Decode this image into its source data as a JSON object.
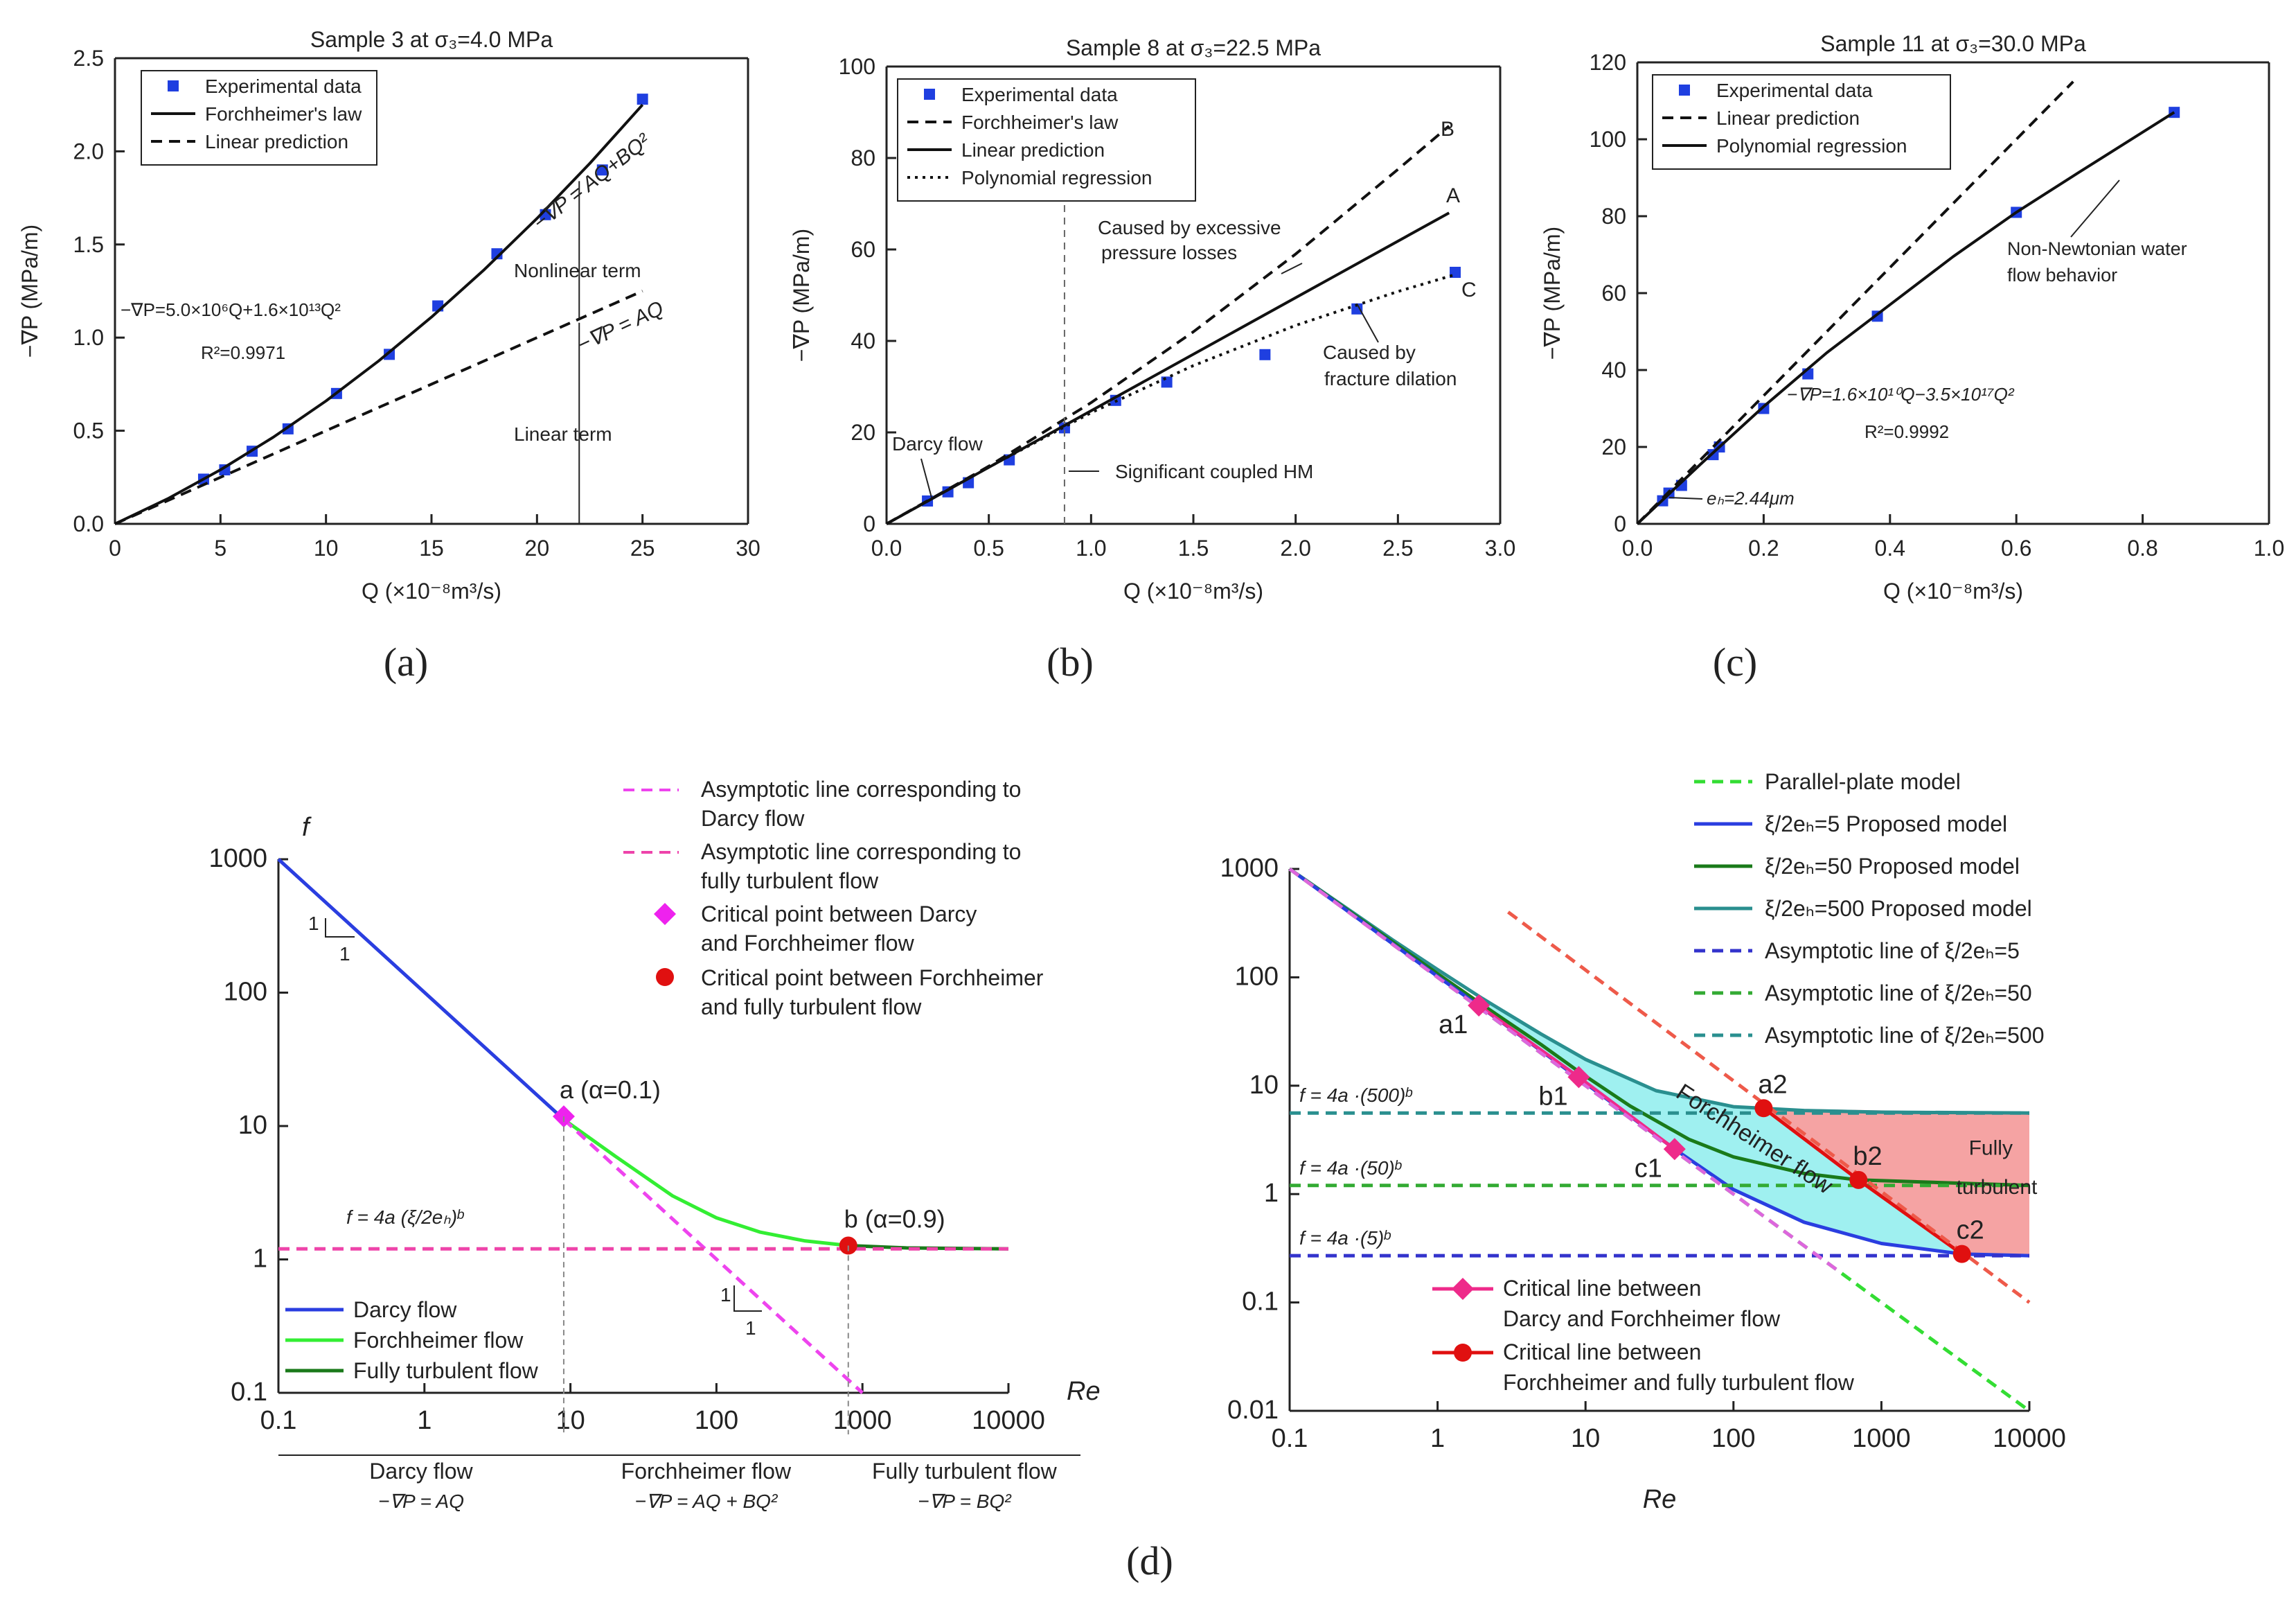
{
  "chart_data": [
    {
      "id": "a",
      "type": "scatter",
      "panel_label": "(a)",
      "title": "Sample 3 at σ₃=4.0 MPa",
      "xlabel": "Q (×10⁻⁸m³/s)",
      "ylabel": "−∇P (MPa/m)",
      "xlim": [
        0,
        30
      ],
      "ylim": [
        0,
        2.5
      ],
      "xticks": [
        0,
        5,
        10,
        15,
        20,
        25,
        30
      ],
      "yticks": [
        0.0,
        0.5,
        1.0,
        1.5,
        2.0,
        2.5
      ],
      "xtick_labels": [
        "0",
        "5",
        "10",
        "15",
        "20",
        "25",
        "30"
      ],
      "ytick_labels": [
        "0.0",
        "0.5",
        "1.0",
        "1.5",
        "2.0",
        "2.5"
      ],
      "legend": [
        "Experimental data",
        "Forchheimer's law",
        "Linear prediction"
      ],
      "series": [
        {
          "name": "Experimental data",
          "style": "marker",
          "color": "#1f3fe0",
          "x": [
            4.2,
            5.2,
            6.5,
            8.2,
            10.5,
            13.0,
            15.3,
            18.1,
            20.4,
            23.1,
            25.0
          ],
          "y": [
            0.24,
            0.29,
            0.39,
            0.51,
            0.7,
            0.91,
            1.17,
            1.45,
            1.66,
            1.9,
            2.28
          ]
        },
        {
          "name": "Forchheimer's law",
          "style": "solid",
          "color": "#111111",
          "x": [
            0,
            2.5,
            5,
            7.5,
            10,
            12.5,
            15,
            17.5,
            20,
            22.5,
            25
          ],
          "y": [
            0,
            0.135,
            0.29,
            0.465,
            0.66,
            0.875,
            1.11,
            1.365,
            1.64,
            1.935,
            2.25
          ]
        },
        {
          "name": "Linear prediction",
          "style": "dashed",
          "color": "#111111",
          "x": [
            0,
            25
          ],
          "y": [
            0,
            1.25
          ]
        }
      ],
      "annotations": [
        "−∇P = AQ+BQ²",
        "−∇P = AQ",
        "Nonlinear term",
        "Linear term",
        "−∇P=5.0×10⁶Q+1.6×10¹³Q²",
        "R²=0.9971"
      ]
    },
    {
      "id": "b",
      "type": "scatter",
      "panel_label": "(b)",
      "title": "Sample 8 at σ₃=22.5 MPa",
      "xlabel": "Q (×10⁻⁸m³/s)",
      "ylabel": "−∇P (MPa/m)",
      "xlim": [
        0,
        3.0
      ],
      "ylim": [
        0,
        100
      ],
      "xticks": [
        0,
        0.5,
        1.0,
        1.5,
        2.0,
        2.5,
        3.0
      ],
      "yticks": [
        0,
        20,
        40,
        60,
        80,
        100
      ],
      "xtick_labels": [
        "0.0",
        "0.5",
        "1.0",
        "1.5",
        "2.0",
        "2.5",
        "3.0"
      ],
      "ytick_labels": [
        "0",
        "20",
        "40",
        "60",
        "80",
        "100"
      ],
      "legend": [
        "Experimental data",
        "Forchheimer's law",
        "Linear prediction",
        "Polynomial regression"
      ],
      "series": [
        {
          "name": "Experimental data",
          "style": "marker",
          "color": "#1f3fe0",
          "x": [
            0.2,
            0.3,
            0.4,
            0.6,
            0.87,
            1.12,
            1.37,
            1.85,
            2.3,
            2.78
          ],
          "y": [
            5,
            7,
            9,
            14,
            21,
            27,
            31,
            37,
            47,
            55
          ]
        },
        {
          "name": "Forchheimer's law",
          "style": "dashed",
          "color": "#111111",
          "x": [
            0,
            0.5,
            1.0,
            1.5,
            2.0,
            2.5,
            2.75
          ],
          "y": [
            0,
            12.6,
            26.5,
            42,
            59,
            77.5,
            87
          ]
        },
        {
          "name": "Linear prediction",
          "style": "solid",
          "color": "#111111",
          "x": [
            0,
            2.75
          ],
          "y": [
            0,
            68
          ]
        },
        {
          "name": "Polynomial regression",
          "style": "dotted",
          "color": "#111111",
          "x": [
            0,
            0.5,
            1.0,
            1.5,
            2.0,
            2.5,
            2.78
          ],
          "y": [
            0,
            12.4,
            24.3,
            34.6,
            43.4,
            50.8,
            54.5
          ]
        }
      ],
      "annotations": [
        "B",
        "A",
        "C",
        "Caused by excessive",
        "pressure losses",
        "Caused by",
        "fracture dilation",
        "Darcy flow",
        "Significant coupled HM"
      ]
    },
    {
      "id": "c",
      "type": "scatter",
      "panel_label": "(c)",
      "title": "Sample 11 at σ₃=30.0 MPa",
      "xlabel": "Q (×10⁻⁸m³/s)",
      "ylabel": "−∇P (MPa/m)",
      "xlim": [
        0,
        1.0
      ],
      "ylim": [
        0,
        120
      ],
      "xticks": [
        0,
        0.2,
        0.4,
        0.6,
        0.8,
        1.0
      ],
      "yticks": [
        0,
        20,
        40,
        60,
        80,
        100,
        120
      ],
      "xtick_labels": [
        "0.0",
        "0.2",
        "0.4",
        "0.6",
        "0.8",
        "1.0"
      ],
      "ytick_labels": [
        "0",
        "20",
        "40",
        "60",
        "80",
        "100",
        "120"
      ],
      "legend": [
        "Experimental data",
        "Linear prediction",
        "Polynomial regression"
      ],
      "series": [
        {
          "name": "Experimental data",
          "style": "marker",
          "color": "#1f3fe0",
          "x": [
            0.04,
            0.05,
            0.07,
            0.12,
            0.13,
            0.2,
            0.27,
            0.38,
            0.6,
            0.85
          ],
          "y": [
            6,
            8,
            10,
            18,
            20,
            30,
            39,
            54,
            81,
            107
          ]
        },
        {
          "name": "Linear prediction",
          "style": "dashed",
          "color": "#111111",
          "x": [
            0,
            0.69
          ],
          "y": [
            0,
            115
          ]
        },
        {
          "name": "Polynomial regression",
          "style": "solid",
          "color": "#111111",
          "x": [
            0,
            0.1,
            0.2,
            0.3,
            0.4,
            0.5,
            0.6,
            0.7,
            0.85
          ],
          "y": [
            0,
            15.5,
            30.5,
            44.5,
            57,
            69.5,
            81,
            91.5,
            107
          ]
        }
      ],
      "annotations": [
        "Non-Newtonian water",
        "flow behavior",
        "−∇P=1.6×10¹⁰Q−3.5×10¹⁷Q²",
        "R²=0.9992",
        "eₕ=2.44μm"
      ]
    },
    {
      "id": "d1",
      "type": "line",
      "xscale": "log",
      "yscale": "log",
      "xlabel": "Re",
      "ylabel": "f",
      "xlim": [
        0.1,
        10000
      ],
      "ylim": [
        0.1,
        1000
      ],
      "xticks": [
        0.1,
        1,
        10,
        100,
        1000,
        10000
      ],
      "yticks": [
        0.1,
        1,
        10,
        100,
        1000
      ],
      "xtick_labels": [
        "0.1",
        "1",
        "10",
        "100",
        "1000",
        "10000"
      ],
      "ytick_labels": [
        "0.1",
        "1",
        "10",
        "100",
        "1000"
      ],
      "series": [
        {
          "name": "Darcy flow",
          "color": "#2a3ee0",
          "x": [
            0.1,
            9
          ],
          "y": [
            1000,
            11.2
          ]
        },
        {
          "name": "Forchheimer flow",
          "color": "#33ee33",
          "x": [
            9,
            20,
            50,
            100,
            200,
            400,
            800
          ],
          "y": [
            11.2,
            6.0,
            3.0,
            2.05,
            1.6,
            1.38,
            1.27
          ]
        },
        {
          "name": "Fully turbulent flow",
          "color": "#1a7a1a",
          "x": [
            800,
            2000,
            10000
          ],
          "y": [
            1.27,
            1.22,
            1.2
          ]
        },
        {
          "name": "Asymptotic line corresponding to Darcy flow",
          "style": "dashed",
          "color": "#ee44ee",
          "x": [
            9,
            1000
          ],
          "y": [
            11.2,
            0.1
          ]
        },
        {
          "name": "Asymptotic line corresponding to fully turbulent flow",
          "style": "dashed",
          "color": "#ee44aa",
          "x": [
            0.1,
            10000
          ],
          "y": [
            1.2,
            1.2
          ]
        }
      ],
      "critical_points": [
        {
          "name": "a",
          "x": 9,
          "y": 11.8,
          "color": "#ee22ee",
          "marker": "diamond",
          "label": "a (α=0.1)"
        },
        {
          "name": "b",
          "x": 800,
          "y": 1.27,
          "color": "#e01010",
          "marker": "circle",
          "label": "b (α=0.9)"
        }
      ],
      "legend_top": [
        "Asymptotic line corresponding to",
        "Darcy flow",
        "Asymptotic line corresponding to",
        "fully turbulent flow",
        "Critical point between Darcy",
        "and Forchheimer flow",
        "Critical point between Forchheimer",
        "and fully turbulent flow"
      ],
      "legend_bottom": [
        "Darcy flow",
        "Forchheimer flow",
        "Fully turbulent flow"
      ],
      "regimes": [
        {
          "name": "Darcy flow",
          "eq": "−∇P = AQ"
        },
        {
          "name": "Forchheimer flow",
          "eq": "−∇P = AQ + BQ²"
        },
        {
          "name": "Fully turbulent flow",
          "eq": "−∇P = BQ²"
        }
      ],
      "formula": "f = 4a (ξ/2eₕ)ᵇ",
      "slope_label": "1"
    },
    {
      "id": "d2",
      "type": "line",
      "xscale": "log",
      "yscale": "log",
      "xlabel": "Re",
      "xlim": [
        0.1,
        10000
      ],
      "ylim": [
        0.01,
        1000
      ],
      "xticks": [
        0.1,
        1,
        10,
        100,
        1000,
        10000
      ],
      "yticks": [
        0.01,
        0.1,
        1,
        10,
        100,
        1000
      ],
      "xtick_labels": [
        "0.1",
        "1",
        "10",
        "100",
        "1000",
        "10000"
      ],
      "ytick_labels": [
        "0.01",
        "0.1",
        "1",
        "10",
        "100",
        "1000"
      ],
      "series": [
        {
          "name": "ξ/2eₕ=500 Proposed model",
          "color": "#2a8f8f",
          "x": [
            0.1,
            0.5,
            1,
            2,
            5,
            10,
            30,
            100,
            300,
            1000,
            10000
          ],
          "y": [
            1000,
            220,
            118,
            64,
            30,
            17.5,
            9.0,
            6.4,
            5.9,
            5.7,
            5.6
          ]
        },
        {
          "name": "ξ/2eₕ=50 Proposed model",
          "color": "#1a7a1a",
          "x": [
            0.1,
            1,
            2,
            5,
            9,
            20,
            50,
            100,
            300,
            700,
            10000
          ],
          "y": [
            1000,
            108,
            56,
            24,
            13.5,
            6.5,
            3.2,
            2.2,
            1.55,
            1.35,
            1.2
          ]
        },
        {
          "name": "ξ/2eₕ=5 Proposed model",
          "color": "#2a3ee0",
          "x": [
            0.1,
            1,
            2,
            5,
            10,
            40,
            100,
            300,
            1000,
            3500,
            10000
          ],
          "y": [
            1000,
            102,
            52,
            21,
            10.5,
            2.6,
            1.1,
            0.55,
            0.35,
            0.28,
            0.27
          ]
        },
        {
          "name": "Parallel-plate model",
          "style": "dashed",
          "color": "#33dd33",
          "x": [
            0.1,
            10000
          ],
          "y": [
            1000,
            0.01
          ]
        },
        {
          "name": "Asymptotic line of ξ/2eₕ=5",
          "style": "dashed",
          "color": "#3333cc",
          "x": [
            0.1,
            10000
          ],
          "y": [
            0.27,
            0.27
          ]
        },
        {
          "name": "Asymptotic line of ξ/2eₕ=50",
          "style": "dashed",
          "color": "#33aa33",
          "x": [
            0.1,
            10000
          ],
          "y": [
            1.2,
            1.2
          ]
        },
        {
          "name": "Asymptotic line of ξ/2eₕ=500",
          "style": "dashed",
          "color": "#2a8f8f",
          "x": [
            0.1,
            10000
          ],
          "y": [
            5.6,
            5.6
          ]
        },
        {
          "name": "Critical line between Darcy and Forchheimer flow",
          "color": "#ee2a8a",
          "x": [
            1.9,
            9,
            40
          ],
          "y": [
            55,
            12,
            2.6
          ]
        },
        {
          "name": "Critical line between Forchheimer and fully turbulent flow",
          "color": "#e01010",
          "x": [
            160,
            700,
            3500
          ],
          "y": [
            6.2,
            1.35,
            0.28
          ]
        },
        {
          "name": "Darcy asymptote",
          "style": "dashed",
          "color": "#dd66dd",
          "x": [
            0.1,
            500
          ],
          "y": [
            1000,
            0.2
          ]
        },
        {
          "name": "Turbulent boundary",
          "style": "dashed",
          "color": "#ee5a4a",
          "x": [
            3,
            10000
          ],
          "y": [
            400,
            0.1
          ]
        }
      ],
      "critical_points": [
        {
          "name": "a1",
          "x": 1.9,
          "y": 55,
          "color": "#ee2a8a",
          "marker": "diamond"
        },
        {
          "name": "b1",
          "x": 9,
          "y": 12,
          "color": "#ee2a8a",
          "marker": "diamond"
        },
        {
          "name": "c1",
          "x": 40,
          "y": 2.6,
          "color": "#ee2a8a",
          "marker": "diamond"
        },
        {
          "name": "a2",
          "x": 160,
          "y": 6.2,
          "color": "#e01010",
          "marker": "circle"
        },
        {
          "name": "b2",
          "x": 700,
          "y": 1.35,
          "color": "#e01010",
          "marker": "circle"
        },
        {
          "name": "c2",
          "x": 3500,
          "y": 0.28,
          "color": "#e01010",
          "marker": "circle"
        }
      ],
      "legend_top": [
        "Parallel-plate model",
        "ξ/2eₕ=5 Proposed model",
        "ξ/2eₕ=50 Proposed model",
        "ξ/2eₕ=500 Proposed model",
        "Asymptotic line of ξ/2eₕ=5",
        "Asymptotic line of ξ/2eₕ=50",
        "Asymptotic line of ξ/2eₕ=500"
      ],
      "legend_bottom": [
        "Critical line between",
        "Darcy and Forchheimer flow",
        "Critical line between",
        "Forchheimer and fully turbulent flow"
      ],
      "formulas": [
        "f = 4a ·(500)ᵇ",
        "f = 4a ·(50)ᵇ",
        "f = 4a ·(5)ᵇ"
      ],
      "region_labels": [
        "Forchheimer flow",
        "Fully",
        "turbulent"
      ],
      "region_colors": {
        "forchheimer": "#9ff0f0",
        "turbulent": "#f5a3a3"
      }
    }
  ],
  "panel_labels": {
    "a": "(a)",
    "b": "(b)",
    "c": "(c)",
    "d": "(d)"
  }
}
